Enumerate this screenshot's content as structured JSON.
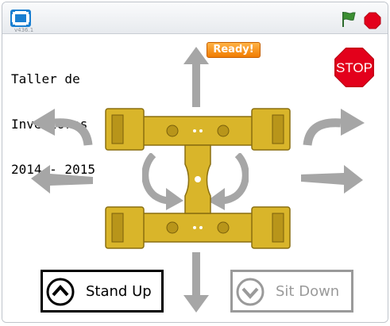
{
  "window": {
    "version": "v436.1",
    "icons": {
      "fullscreen": "fullscreen-icon",
      "green_flag": "green-flag-icon",
      "stop": "stop-icon"
    }
  },
  "stage": {
    "title_lines": [
      "Taller de",
      "Inventores",
      "2014 - 2015"
    ],
    "status_badge": "Ready!",
    "stop_sign_label": "STOP",
    "stand_up_label": "Stand Up",
    "sit_down_label": "Sit Down",
    "colors": {
      "arrow": "#a6a6a6",
      "robot": "#d9b52a",
      "badge": "#f07c00",
      "stop": "#e3001b"
    }
  }
}
